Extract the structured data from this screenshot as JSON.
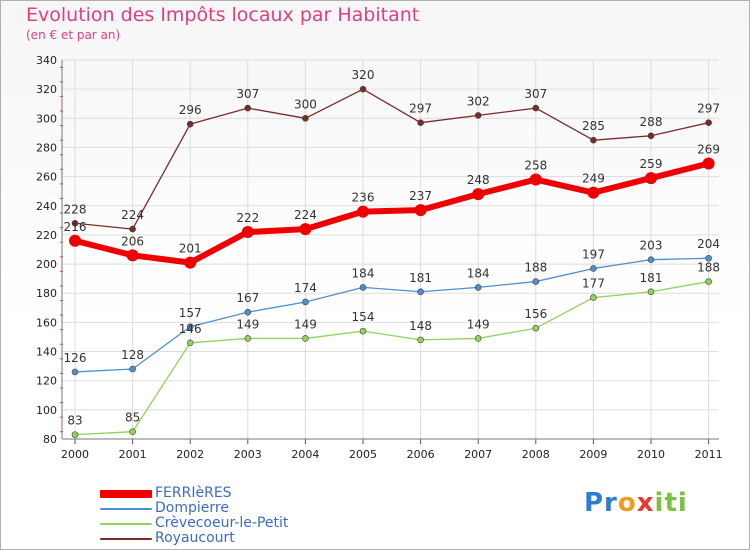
{
  "chart_data": {
    "type": "line",
    "title": "Evolution des Impôts locaux par Habitant",
    "subtitle": "(en € et par an)",
    "categories": [
      "2000",
      "2001",
      "2002",
      "2003",
      "2004",
      "2005",
      "2006",
      "2007",
      "2008",
      "2009",
      "2010",
      "2011"
    ],
    "ylim": [
      80,
      340
    ],
    "yticks": [
      80,
      100,
      120,
      140,
      160,
      180,
      200,
      220,
      240,
      260,
      280,
      300,
      320,
      340
    ],
    "grid": true,
    "legend_position": "bottom-left",
    "series": [
      {
        "name": "FERRIèRES",
        "color": "#ee0000",
        "values": [
          216,
          206,
          201,
          222,
          224,
          236,
          237,
          248,
          258,
          249,
          259,
          269
        ]
      },
      {
        "name": "Dompierre",
        "color": "#4f8fcf",
        "values": [
          126,
          128,
          157,
          167,
          174,
          184,
          181,
          184,
          188,
          197,
          203,
          204
        ]
      },
      {
        "name": "Crèvecoeur-le-Petit",
        "color": "#8ed35a",
        "values": [
          83,
          85,
          146,
          149,
          149,
          154,
          148,
          149,
          156,
          177,
          181,
          188
        ]
      },
      {
        "name": "Royaucourt",
        "color": "#7a2a2a",
        "values": [
          228,
          224,
          296,
          307,
          300,
          320,
          297,
          302,
          307,
          285,
          288,
          297
        ]
      }
    ]
  },
  "logo": {
    "p1": "Pr",
    "p2": "o",
    "p3": "x",
    "p4": "iti"
  }
}
